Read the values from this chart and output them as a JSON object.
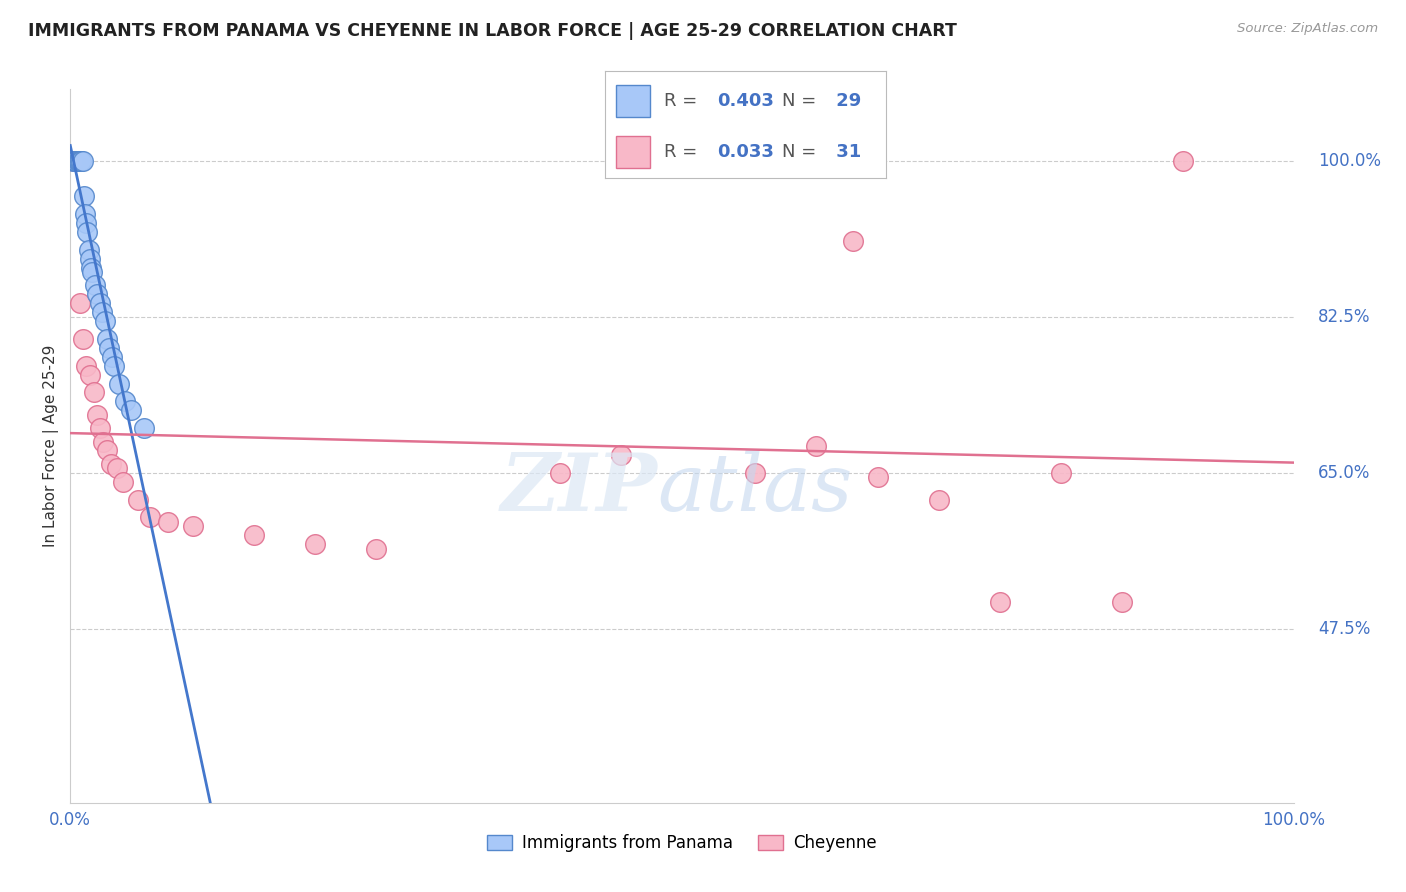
{
  "title": "IMMIGRANTS FROM PANAMA VS CHEYENNE IN LABOR FORCE | AGE 25-29 CORRELATION CHART",
  "source": "Source: ZipAtlas.com",
  "ylabel": "In Labor Force | Age 25-29",
  "xlim": [
    0.0,
    1.0
  ],
  "ylim": [
    0.28,
    1.08
  ],
  "yticks": [
    0.475,
    0.65,
    0.825,
    1.0
  ],
  "ytick_labels": [
    "47.5%",
    "65.0%",
    "82.5%",
    "100.0%"
  ],
  "xticks": [
    0.0,
    0.1,
    0.2,
    0.3,
    0.4,
    0.5,
    0.6,
    0.7,
    0.8,
    0.9,
    1.0
  ],
  "xtick_labels": [
    "0.0%",
    "",
    "",
    "",
    "",
    "",
    "",
    "",
    "",
    "",
    "100.0%"
  ],
  "blue_R": 0.403,
  "blue_N": 29,
  "pink_R": 0.033,
  "pink_N": 31,
  "blue_color": "#a8c8f8",
  "pink_color": "#f8b8c8",
  "blue_edge_color": "#5588cc",
  "pink_edge_color": "#e07090",
  "blue_line_color": "#4477cc",
  "pink_line_color": "#e07090",
  "legend_label_blue": "Immigrants from Panama",
  "legend_label_pink": "Cheyenne",
  "blue_scatter_x": [
    0.002,
    0.004,
    0.005,
    0.006,
    0.007,
    0.008,
    0.009,
    0.01,
    0.011,
    0.012,
    0.013,
    0.014,
    0.015,
    0.016,
    0.017,
    0.018,
    0.02,
    0.022,
    0.024,
    0.026,
    0.028,
    0.03,
    0.032,
    0.034,
    0.036,
    0.04,
    0.045,
    0.05,
    0.06
  ],
  "blue_scatter_y": [
    1.0,
    1.0,
    1.0,
    1.0,
    1.0,
    1.0,
    1.0,
    1.0,
    0.96,
    0.94,
    0.93,
    0.92,
    0.9,
    0.89,
    0.88,
    0.875,
    0.86,
    0.85,
    0.84,
    0.83,
    0.82,
    0.8,
    0.79,
    0.78,
    0.77,
    0.75,
    0.73,
    0.72,
    0.7
  ],
  "pink_scatter_x": [
    0.003,
    0.008,
    0.01,
    0.013,
    0.016,
    0.019,
    0.022,
    0.024,
    0.027,
    0.03,
    0.033,
    0.038,
    0.043,
    0.055,
    0.065,
    0.08,
    0.1,
    0.15,
    0.2,
    0.25,
    0.4,
    0.45,
    0.56,
    0.61,
    0.64,
    0.66,
    0.71,
    0.76,
    0.81,
    0.86,
    0.91
  ],
  "pink_scatter_y": [
    1.0,
    0.84,
    0.8,
    0.77,
    0.76,
    0.74,
    0.715,
    0.7,
    0.685,
    0.675,
    0.66,
    0.655,
    0.64,
    0.62,
    0.6,
    0.595,
    0.59,
    0.58,
    0.57,
    0.565,
    0.65,
    0.67,
    0.65,
    0.68,
    0.91,
    0.645,
    0.62,
    0.505,
    0.65,
    0.505,
    1.0
  ],
  "background_color": "#ffffff",
  "grid_color": "#cccccc"
}
